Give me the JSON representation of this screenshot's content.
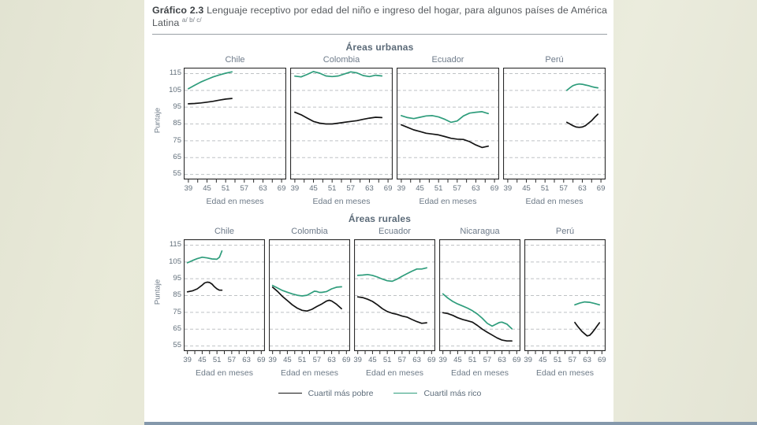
{
  "title": {
    "label": "Gráfico 2.3",
    "text": "Lenguaje receptivo por edad del niño e ingreso del hogar, para algunos países de América Latina",
    "superscript": "a/ b/ c/"
  },
  "legend": {
    "poor": "Cuartil más pobre",
    "rich": "Cuartil más rico"
  },
  "colors": {
    "poor": "#141414",
    "rich": "#2f9d7c",
    "grid": "#bfc2c5",
    "frame": "#2b2b2b",
    "accent_bar": "#8498ab"
  },
  "chart_data": [
    {
      "type": "line",
      "group": "Áreas urbanas",
      "ylabel": "Puntaje",
      "xlabel": "Edad en meses",
      "ylim": [
        52,
        118.5
      ],
      "xlim": [
        37.5,
        70.5
      ],
      "yticks": [
        115,
        105,
        95,
        85,
        75,
        65,
        55
      ],
      "xticks": [
        39,
        45,
        51,
        57,
        63,
        69
      ],
      "minor_tick_step": 3,
      "panels": [
        {
          "country": "Chile",
          "series": [
            {
              "name": "Cuartil más pobre",
              "color_key": "poor",
              "x": [
                39,
                41,
                43,
                45,
                47,
                49,
                51,
                53
              ],
              "y": [
                97,
                97.2,
                97.5,
                98,
                98.5,
                99.2,
                99.8,
                100.2
              ]
            },
            {
              "name": "Cuartil más rico",
              "color_key": "rich",
              "x": [
                39,
                41,
                43,
                45,
                47,
                49,
                51,
                53
              ],
              "y": [
                106,
                108,
                110,
                111.5,
                113,
                114.2,
                115.2,
                116
              ]
            }
          ]
        },
        {
          "country": "Colombia",
          "series": [
            {
              "name": "Cuartil más pobre",
              "color_key": "poor",
              "x": [
                39,
                41,
                43,
                45,
                47,
                49,
                51,
                53,
                55,
                57,
                59,
                61,
                63,
                65,
                67
              ],
              "y": [
                92,
                90.5,
                88.5,
                86.5,
                85.5,
                85,
                85,
                85.5,
                86,
                86.5,
                87,
                87.8,
                88.5,
                89,
                88.8
              ]
            },
            {
              "name": "Cuartil más rico",
              "color_key": "rich",
              "x": [
                39,
                41,
                43,
                45,
                47,
                49,
                51,
                53,
                55,
                57,
                59,
                61,
                63,
                65,
                67
              ],
              "y": [
                113.5,
                113,
                114.5,
                116.2,
                115.2,
                113.6,
                113.2,
                113.6,
                114.8,
                116,
                115.4,
                113.8,
                113.2,
                114,
                113.6
              ]
            }
          ]
        },
        {
          "country": "Ecuador",
          "series": [
            {
              "name": "Cuartil más pobre",
              "color_key": "poor",
              "x": [
                39,
                41,
                43,
                45,
                47,
                49,
                51,
                53,
                55,
                57,
                59,
                61,
                63,
                65,
                67
              ],
              "y": [
                84.5,
                83,
                81.5,
                80.5,
                79.5,
                79,
                78.5,
                77.5,
                76.5,
                76,
                75.8,
                74.5,
                72.5,
                71,
                71.8
              ]
            },
            {
              "name": "Cuartil más rico",
              "color_key": "rich",
              "x": [
                39,
                41,
                43,
                45,
                47,
                49,
                51,
                53,
                55,
                57,
                59,
                61,
                63,
                65,
                67
              ],
              "y": [
                90,
                88.8,
                88.2,
                89,
                89.8,
                90,
                89.2,
                87.8,
                86,
                86.8,
                89.8,
                91.5,
                92,
                92.3,
                91.2
              ]
            }
          ]
        },
        {
          "country": "Perú",
          "series": [
            {
              "name": "Cuartil más pobre",
              "color_key": "poor",
              "x": [
                58,
                59,
                60,
                61,
                62,
                63,
                64,
                65,
                66,
                67,
                68
              ],
              "y": [
                86,
                85,
                84,
                83.2,
                83,
                83.2,
                84,
                85.5,
                87,
                89,
                90.8
              ]
            },
            {
              "name": "Cuartil más rico",
              "color_key": "rich",
              "x": [
                58,
                59,
                60,
                61,
                62,
                63,
                64,
                65,
                66,
                67,
                68
              ],
              "y": [
                105,
                106.5,
                107.8,
                108.5,
                108.8,
                108.6,
                108.2,
                107.8,
                107.2,
                106.8,
                106.5
              ]
            }
          ]
        }
      ]
    },
    {
      "type": "line",
      "group": "Áreas rurales",
      "ylabel": "Puntaje",
      "xlabel": "Edad en meses",
      "ylim": [
        52,
        118.5
      ],
      "xlim": [
        37.5,
        70.5
      ],
      "yticks": [
        115,
        105,
        95,
        85,
        75,
        65,
        55
      ],
      "xticks": [
        39,
        45,
        51,
        57,
        63,
        69
      ],
      "minor_tick_step": 3,
      "panels": [
        {
          "country": "Chile",
          "series": [
            {
              "name": "Cuartil más pobre",
              "color_key": "poor",
              "x": [
                39,
                41,
                43,
                45,
                46,
                47,
                48,
                49,
                50,
                51,
                52,
                53
              ],
              "y": [
                87.2,
                87.8,
                89,
                91.2,
                92.5,
                93,
                92.8,
                91.8,
                90.2,
                89,
                88.2,
                88.2
              ]
            },
            {
              "name": "Cuartil más rico",
              "color_key": "rich",
              "x": [
                39,
                41,
                43,
                45,
                47,
                49,
                51,
                52,
                53
              ],
              "y": [
                104.5,
                105.8,
                107,
                107.8,
                107.4,
                106.8,
                106.6,
                107.8,
                111.5
              ]
            }
          ]
        },
        {
          "country": "Colombia",
          "series": [
            {
              "name": "Cuartil más pobre",
              "color_key": "poor",
              "x": [
                39,
                41,
                43,
                45,
                47,
                49,
                51,
                53,
                55,
                57,
                59,
                61,
                62,
                63,
                65,
                67
              ],
              "y": [
                90,
                87.5,
                84.5,
                82,
                79.5,
                77.5,
                76.2,
                75.8,
                76.8,
                78.5,
                80,
                81.8,
                82.2,
                81.8,
                79.8,
                77.2
              ]
            },
            {
              "name": "Cuartil más rico",
              "color_key": "rich",
              "x": [
                39,
                41,
                43,
                45,
                47,
                49,
                51,
                53,
                55,
                56,
                57,
                58,
                59,
                61,
                63,
                65,
                67
              ],
              "y": [
                91,
                89.5,
                88,
                87,
                86,
                85.2,
                84.8,
                85.2,
                86.8,
                87.6,
                87.4,
                86.9,
                86.9,
                87.4,
                89,
                90,
                90.2
              ]
            }
          ]
        },
        {
          "country": "Ecuador",
          "series": [
            {
              "name": "Cuartil más pobre",
              "color_key": "poor",
              "x": [
                39,
                41,
                43,
                45,
                47,
                49,
                51,
                53,
                55,
                57,
                59,
                61,
                63,
                65,
                67
              ],
              "y": [
                84.2,
                83.8,
                82.8,
                81.5,
                79.5,
                77.2,
                75.5,
                74.5,
                73.8,
                72.8,
                72.2,
                70.8,
                69.5,
                68.5,
                68.8
              ]
            },
            {
              "name": "Cuartil más rico",
              "color_key": "rich",
              "x": [
                39,
                41,
                43,
                45,
                47,
                49,
                51,
                53,
                55,
                57,
                59,
                61,
                63,
                65,
                67
              ],
              "y": [
                97,
                97.2,
                97.5,
                97,
                96,
                94.8,
                93.8,
                93.5,
                94.8,
                96.5,
                98,
                99.5,
                100.8,
                100.8,
                101.5
              ]
            }
          ]
        },
        {
          "country": "Nicaragua",
          "series": [
            {
              "name": "Cuartil más pobre",
              "color_key": "poor",
              "x": [
                39,
                41,
                43,
                45,
                47,
                49,
                51,
                53,
                55,
                57,
                59,
                61,
                63,
                65,
                67
              ],
              "y": [
                74.8,
                74.3,
                73.2,
                71.8,
                70.8,
                70,
                69.2,
                67.2,
                65,
                63.2,
                61.5,
                59.8,
                58.5,
                58,
                58
              ]
            },
            {
              "name": "Cuartil más rico",
              "color_key": "rich",
              "x": [
                39,
                41,
                43,
                45,
                47,
                49,
                51,
                53,
                55,
                57,
                59,
                61,
                62,
                63,
                65,
                67
              ],
              "y": [
                86,
                83.5,
                81.5,
                80,
                78.8,
                77.5,
                76,
                74,
                71.5,
                68.5,
                66.8,
                68.3,
                69,
                69.2,
                68,
                65.2
              ]
            }
          ]
        },
        {
          "country": "Perú",
          "series": [
            {
              "name": "Cuartil más pobre",
              "color_key": "poor",
              "x": [
                58,
                59,
                60,
                61,
                62,
                63,
                64,
                65,
                66,
                67,
                68
              ],
              "y": [
                69,
                67,
                65.2,
                63.5,
                62.2,
                61,
                61.3,
                62.8,
                64.8,
                66.8,
                68.8
              ]
            },
            {
              "name": "Cuartil más rico",
              "color_key": "rich",
              "x": [
                58,
                60,
                62,
                64,
                66,
                68
              ],
              "y": [
                79.5,
                80.5,
                81.2,
                81,
                80.3,
                79.5
              ]
            }
          ]
        }
      ]
    }
  ]
}
